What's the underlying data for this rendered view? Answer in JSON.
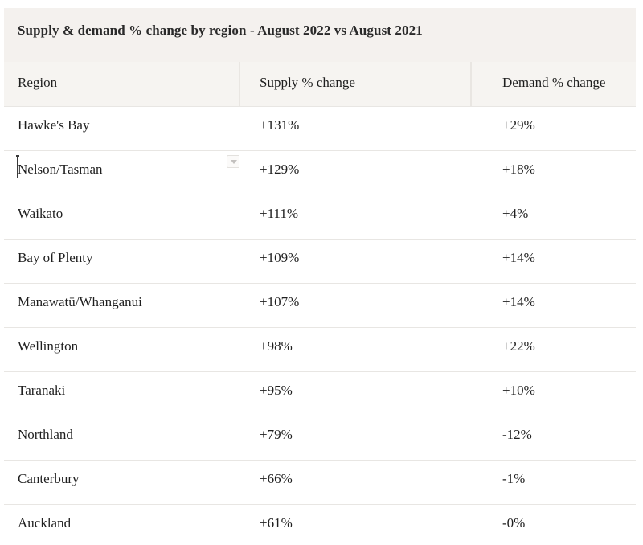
{
  "title": "Supply & demand % change by region - August 2022 vs August 2021",
  "table": {
    "columns": [
      "Region",
      "Supply % change",
      "Demand % change"
    ],
    "rows": [
      {
        "region": "Hawke's Bay",
        "supply": "+131%",
        "demand": "+29%"
      },
      {
        "region": "Nelson/Tasman",
        "supply": "+129%",
        "demand": "+18%"
      },
      {
        "region": "Waikato",
        "supply": "+111%",
        "demand": "+4%"
      },
      {
        "region": "Bay of Plenty",
        "supply": "+109%",
        "demand": "+14%"
      },
      {
        "region": "Manawatū/Whanganui",
        "supply": "+107%",
        "demand": "+14%"
      },
      {
        "region": "Wellington",
        "supply": "+98%",
        "demand": "+22%"
      },
      {
        "region": "Taranaki",
        "supply": "+95%",
        "demand": "+10%"
      },
      {
        "region": "Northland",
        "supply": "+79%",
        "demand": "-12%"
      },
      {
        "region": "Canterbury",
        "supply": "+66%",
        "demand": "-1%"
      },
      {
        "region": "Auckland",
        "supply": "+61%",
        "demand": "-0%"
      }
    ]
  },
  "chart_data": {
    "type": "table",
    "title": "Supply & demand % change by region - August 2022 vs August 2021",
    "columns": [
      "Region",
      "Supply % change",
      "Demand % change"
    ],
    "rows": [
      [
        "Hawke's Bay",
        "+131%",
        "+29%"
      ],
      [
        "Nelson/Tasman",
        "+129%",
        "+18%"
      ],
      [
        "Waikato",
        "+111%",
        "+4%"
      ],
      [
        "Bay of Plenty",
        "+109%",
        "+14%"
      ],
      [
        "Manawatū/Whanganui",
        "+107%",
        "+14%"
      ],
      [
        "Wellington",
        "+98%",
        "+22%"
      ],
      [
        "Taranaki",
        "+95%",
        "+10%"
      ],
      [
        "Northland",
        "+79%",
        "-12%"
      ],
      [
        "Canterbury",
        "+66%",
        "-1%"
      ],
      [
        "Auckland",
        "+61%",
        "-0%"
      ]
    ]
  },
  "widgets": {
    "dropdown_icon": "chevron-down",
    "text_cursor": "caret-in-nelson-tasman-cell"
  },
  "colors": {
    "panel_bg": "#f4f1ee",
    "header_cell_bg": "#f6f4f1",
    "divider": "#e9e6e2",
    "row_border": "#e8e6e3",
    "text": "#1f1f1f",
    "icon_border": "#e3e1de",
    "icon_bg": "#fbfaf9",
    "icon_glyph": "#c3c1bf"
  }
}
